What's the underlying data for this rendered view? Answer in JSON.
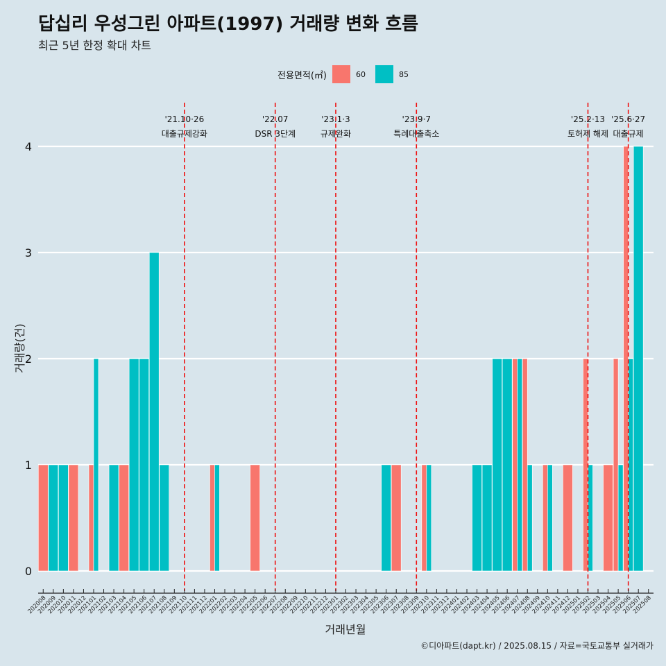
{
  "title": "답십리 우성그린 아파트(1997) 거래량 변화 흐름",
  "subtitle": "최근 5년 한정 확대 차트",
  "caption": "©디아파트(dapt.kr) / 2025.08.15 / 자료=국토교통부 실거래가",
  "legend": {
    "title": "전용면적(㎡)",
    "items": [
      {
        "label": "60",
        "color": "#f8766d"
      },
      {
        "label": "85",
        "color": "#00bfc4"
      }
    ]
  },
  "chart_data": {
    "type": "bar",
    "xlabel": "거래년월",
    "ylabel": "거래량(건)",
    "ylim": [
      0,
      4
    ],
    "yticks": [
      "0",
      "1",
      "2",
      "3",
      "4"
    ],
    "grid": "horizontal",
    "legend_position": "top",
    "categories": [
      "202008",
      "202009",
      "202010",
      "202011",
      "202012",
      "202101",
      "202102",
      "202103",
      "202104",
      "202105",
      "202106",
      "202107",
      "202108",
      "202109",
      "202110",
      "202111",
      "202112",
      "202201",
      "202202",
      "202203",
      "202204",
      "202205",
      "202206",
      "202207",
      "202208",
      "202209",
      "202210",
      "202211",
      "202212",
      "202301",
      "202302",
      "202303",
      "202304",
      "202305",
      "202306",
      "202307",
      "202308",
      "202309",
      "202310",
      "202311",
      "202312",
      "202401",
      "202402",
      "202403",
      "202404",
      "202405",
      "202406",
      "202407",
      "202408",
      "202409",
      "202410",
      "202411",
      "202412",
      "202501",
      "202502",
      "202503",
      "202504",
      "202505",
      "202506",
      "202507",
      "202508"
    ],
    "series": [
      {
        "name": "60",
        "color": "#f8766d",
        "values": [
          1,
          0,
          0,
          1,
          0,
          1,
          0,
          0,
          1,
          0,
          0,
          0,
          0,
          0,
          0,
          0,
          0,
          1,
          0,
          0,
          0,
          1,
          0,
          0,
          0,
          0,
          0,
          0,
          0,
          0,
          0,
          0,
          0,
          0,
          0,
          1,
          0,
          0,
          1,
          0,
          0,
          0,
          0,
          0,
          0,
          0,
          0,
          2,
          2,
          0,
          1,
          0,
          1,
          0,
          2,
          0,
          1,
          2,
          4,
          0,
          0
        ]
      },
      {
        "name": "85",
        "color": "#00bfc4",
        "values": [
          0,
          1,
          1,
          0,
          0,
          2,
          0,
          1,
          0,
          2,
          2,
          3,
          1,
          0,
          0,
          0,
          0,
          1,
          0,
          0,
          0,
          0,
          0,
          0,
          0,
          0,
          0,
          0,
          0,
          0,
          0,
          0,
          0,
          0,
          1,
          0,
          0,
          0,
          1,
          0,
          0,
          0,
          0,
          1,
          1,
          2,
          2,
          2,
          1,
          0,
          1,
          0,
          0,
          0,
          1,
          0,
          0,
          1,
          2,
          4,
          0
        ]
      }
    ],
    "annotations": [
      {
        "category": "202110",
        "date": "'21.10·26",
        "label": "대출규제강화"
      },
      {
        "category": "202207",
        "date": "'22.07",
        "label": "DSR 3단계"
      },
      {
        "category": "202301",
        "date": "'23.1·3",
        "label": "규제완화"
      },
      {
        "category": "202309",
        "date": "'23.9·7",
        "label": "특례대출축소"
      },
      {
        "category": "202502",
        "date": "'25.2·13",
        "label": "토허제 해제"
      },
      {
        "category": "202506",
        "date": "'25.6·27",
        "label": "대출규제"
      }
    ]
  }
}
